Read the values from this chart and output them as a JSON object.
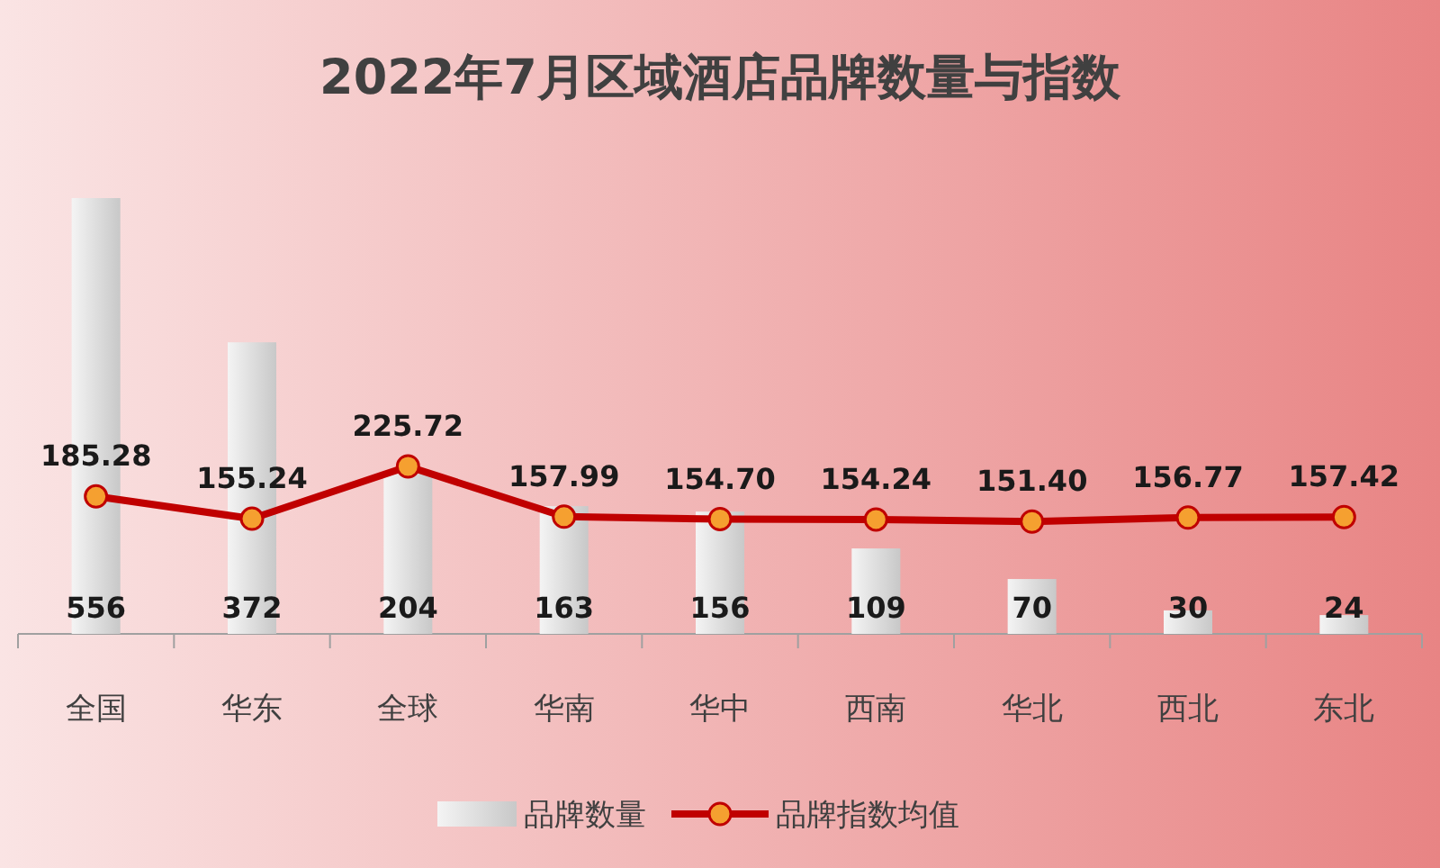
{
  "chart_data": {
    "type": "bar",
    "title": "2022年7月区域酒店品牌数量与指数",
    "categories": [
      "全国",
      "华东",
      "全球",
      "华南",
      "华中",
      "西南",
      "华北",
      "西北",
      "东北"
    ],
    "series": [
      {
        "name": "品牌数量",
        "color": "#c8c8c8",
        "values": [
          556,
          372,
          204,
          163,
          156,
          109,
          70,
          30,
          24
        ]
      },
      {
        "name": "品牌指数均值",
        "type": "line",
        "axis": "y2",
        "color": "#c00000",
        "values": [
          185.28,
          155.24,
          225.72,
          157.99,
          154.7,
          154.24,
          151.4,
          156.77,
          157.42
        ],
        "value_labels": [
          "185.28",
          "155.24",
          "225.72",
          "157.99",
          "154.70",
          "154.24",
          "151.40",
          "156.77",
          "157.42"
        ]
      }
    ],
    "marker": "circle",
    "data_labels": true,
    "legend": "bottom"
  }
}
